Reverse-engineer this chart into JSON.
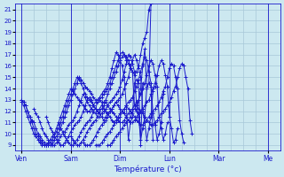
{
  "bg_color": "#cce8f0",
  "line_color": "#1a1acc",
  "grid_color": "#a8c8d8",
  "xlabel": "Température (°c)",
  "xtick_labels": [
    "Ven",
    "Sam",
    "Dim",
    "Lun",
    "Mar",
    "Me"
  ],
  "xtick_positions": [
    0,
    24,
    48,
    72,
    96,
    120
  ],
  "ylim": [
    8.5,
    21.5
  ],
  "yticks": [
    9,
    10,
    11,
    12,
    13,
    14,
    15,
    16,
    17,
    18,
    19,
    20,
    21
  ],
  "xlim": [
    -3,
    126
  ],
  "n_grid_x": 21,
  "series_data": [
    {
      "start": 0,
      "values": [
        13.0,
        12.8,
        12.5,
        12.0,
        11.5,
        11.2,
        11.0,
        10.5,
        10.0,
        9.8,
        9.5,
        9.2,
        9.0,
        9.0,
        9.0,
        9.2,
        9.5,
        9.8,
        10.0,
        10.5,
        11.0,
        11.5,
        12.0,
        12.5,
        13.0,
        13.5,
        14.0,
        14.5,
        15.0,
        14.8,
        14.5,
        14.2,
        14.0,
        13.8,
        13.5,
        13.2,
        13.0,
        13.0,
        13.0,
        13.2,
        13.5,
        13.8,
        14.0,
        14.5,
        15.0,
        15.5,
        16.0,
        16.5,
        17.0,
        17.2,
        17.0,
        16.5,
        16.2,
        15.8,
        15.5,
        15.2,
        15.5,
        16.0,
        17.0,
        18.0,
        18.5,
        19.0,
        21.0,
        21.5
      ]
    },
    {
      "start": 0,
      "values": [
        13.0,
        12.8,
        12.5,
        12.0,
        11.5,
        11.0,
        10.5,
        10.0,
        9.8,
        9.5,
        9.2,
        9.0,
        9.0,
        9.0,
        9.2,
        9.5,
        9.8,
        10.2,
        10.5,
        11.0,
        11.5,
        12.0,
        12.5,
        13.0,
        13.5,
        14.0,
        14.5,
        15.0,
        14.8,
        14.5,
        14.0,
        13.5,
        13.2,
        13.0,
        12.8,
        12.5,
        12.2,
        12.0,
        12.2,
        12.5,
        12.8,
        13.0,
        13.5,
        14.0,
        14.5,
        15.0,
        15.5,
        16.0,
        16.5,
        16.8,
        17.0,
        16.8,
        16.5,
        16.0,
        15.5,
        12.5,
        12.0,
        13.0,
        14.0,
        16.0,
        17.5,
        14.2,
        14.5,
        21.5
      ]
    },
    {
      "start": 0,
      "values": [
        12.8,
        12.5,
        12.0,
        11.5,
        11.0,
        10.5,
        10.0,
        9.8,
        9.5,
        9.2,
        9.0,
        9.0,
        9.0,
        9.2,
        9.5,
        9.8,
        10.0,
        10.5,
        11.0,
        11.5,
        12.0,
        12.5,
        13.0,
        13.5,
        14.0,
        13.8,
        13.5,
        13.2,
        13.0,
        12.8,
        12.5,
        12.2,
        12.0,
        12.0,
        12.2,
        12.5,
        12.8,
        13.0,
        13.2,
        13.5,
        13.8,
        14.0,
        14.5,
        15.0,
        15.8,
        16.5,
        17.2,
        17.0,
        16.5,
        16.0,
        15.0,
        12.5,
        9.5,
        11.0,
        11.5,
        14.5,
        14.8,
        14.5,
        9.0,
        14.5
      ]
    },
    {
      "start": 6,
      "values": [
        12.2,
        11.8,
        11.5,
        11.0,
        10.5,
        10.0,
        9.8,
        9.5,
        9.2,
        9.0,
        9.0,
        9.2,
        9.5,
        9.8,
        10.0,
        10.2,
        10.5,
        10.8,
        11.0,
        11.2,
        11.5,
        12.0,
        12.5,
        13.0,
        13.5,
        13.2,
        12.8,
        12.5,
        12.2,
        12.0,
        11.8,
        11.5,
        11.5,
        11.8,
        12.0,
        12.2,
        12.5,
        12.8,
        13.0,
        13.2,
        13.5,
        13.8,
        14.2,
        14.8,
        15.5,
        16.2,
        17.0,
        16.8,
        16.2,
        15.5,
        12.5,
        11.5,
        9.5,
        10.5,
        11.5,
        14.0,
        14.5,
        14.2,
        9.5
      ]
    },
    {
      "start": 12,
      "values": [
        11.5,
        11.0,
        10.5,
        10.2,
        9.8,
        9.5,
        9.2,
        9.0,
        9.0,
        9.2,
        9.5,
        9.8,
        10.2,
        10.5,
        10.8,
        11.0,
        11.2,
        11.5,
        12.0,
        12.5,
        13.0,
        13.2,
        13.0,
        12.5,
        12.2,
        12.0,
        11.8,
        11.5,
        11.2,
        11.5,
        11.8,
        12.0,
        12.2,
        12.5,
        12.8,
        13.0,
        13.2,
        13.5,
        14.0,
        14.5,
        15.0,
        15.8,
        16.5,
        17.0,
        16.5,
        15.8,
        15.0,
        12.0,
        11.0,
        9.5,
        10.5,
        11.5,
        13.8,
        14.2
      ]
    },
    {
      "start": 18,
      "values": [
        10.8,
        10.5,
        10.2,
        9.8,
        9.5,
        9.2,
        9.0,
        9.0,
        9.2,
        9.5,
        9.8,
        10.2,
        10.5,
        10.8,
        11.0,
        11.2,
        11.5,
        12.0,
        12.2,
        12.8,
        13.0,
        12.8,
        12.2,
        12.0,
        11.8,
        11.5,
        11.2,
        11.0,
        11.2,
        11.5,
        11.8,
        12.0,
        12.2,
        12.5,
        12.8,
        13.0,
        13.2,
        13.8,
        14.2,
        14.8,
        15.5,
        16.2,
        16.8,
        16.5,
        15.5,
        14.5,
        11.8,
        10.8,
        9.5,
        10.0,
        11.0,
        13.5
      ]
    },
    {
      "start": 24,
      "values": [
        9.8,
        9.5,
        9.2,
        9.0,
        9.0,
        9.2,
        9.5,
        9.8,
        10.2,
        10.5,
        10.8,
        11.0,
        11.2,
        11.5,
        12.0,
        12.2,
        12.5,
        12.8,
        12.5,
        12.2,
        12.0,
        11.8,
        11.5,
        11.2,
        11.0,
        11.0,
        11.2,
        11.5,
        11.8,
        12.0,
        12.2,
        12.5,
        12.8,
        13.0,
        13.5,
        14.0,
        14.5,
        15.2,
        16.0,
        16.5,
        16.2,
        15.2,
        14.2,
        11.5,
        10.5,
        9.5,
        10.0,
        11.0
      ]
    },
    {
      "start": 30,
      "values": [
        9.2,
        9.0,
        9.0,
        9.0,
        9.2,
        9.5,
        9.8,
        10.2,
        10.5,
        10.8,
        11.0,
        11.2,
        11.5,
        12.0,
        12.2,
        12.5,
        12.8,
        12.5,
        12.2,
        12.0,
        11.8,
        11.5,
        11.2,
        11.0,
        11.0,
        11.2,
        11.5,
        11.8,
        12.0,
        12.2,
        12.5,
        12.8,
        13.0,
        13.5,
        14.0,
        14.5,
        15.2,
        16.0,
        16.5,
        16.2,
        15.2,
        14.2,
        11.5,
        10.5,
        9.2,
        9.5,
        10.5
      ]
    },
    {
      "start": 36,
      "values": [
        9.0,
        9.0,
        9.0,
        9.2,
        9.5,
        9.8,
        10.0,
        10.2,
        10.5,
        10.8,
        11.0,
        11.2,
        11.5,
        12.0,
        12.2,
        12.5,
        12.2,
        12.0,
        11.8,
        11.5,
        11.2,
        11.0,
        10.8,
        10.8,
        11.0,
        11.2,
        11.5,
        11.8,
        12.0,
        12.2,
        12.5,
        12.8,
        13.2,
        13.8,
        14.2,
        15.0,
        15.8,
        16.2,
        16.0,
        15.0,
        14.0,
        11.2,
        10.0,
        9.2
      ]
    },
    {
      "start": 42,
      "values": [
        9.0,
        9.0,
        9.2,
        9.5,
        9.8,
        10.0,
        10.2,
        10.5,
        10.8,
        11.0,
        11.2,
        11.5,
        12.0,
        12.2,
        12.5,
        12.2,
        12.0,
        11.8,
        11.5,
        11.2,
        11.0,
        10.8,
        10.8,
        11.0,
        11.2,
        11.5,
        11.8,
        12.0,
        12.2,
        12.5,
        12.8,
        13.2,
        13.8,
        14.2,
        15.0,
        15.8,
        16.2,
        16.0,
        15.0,
        14.0,
        11.2,
        10.0
      ]
    }
  ]
}
